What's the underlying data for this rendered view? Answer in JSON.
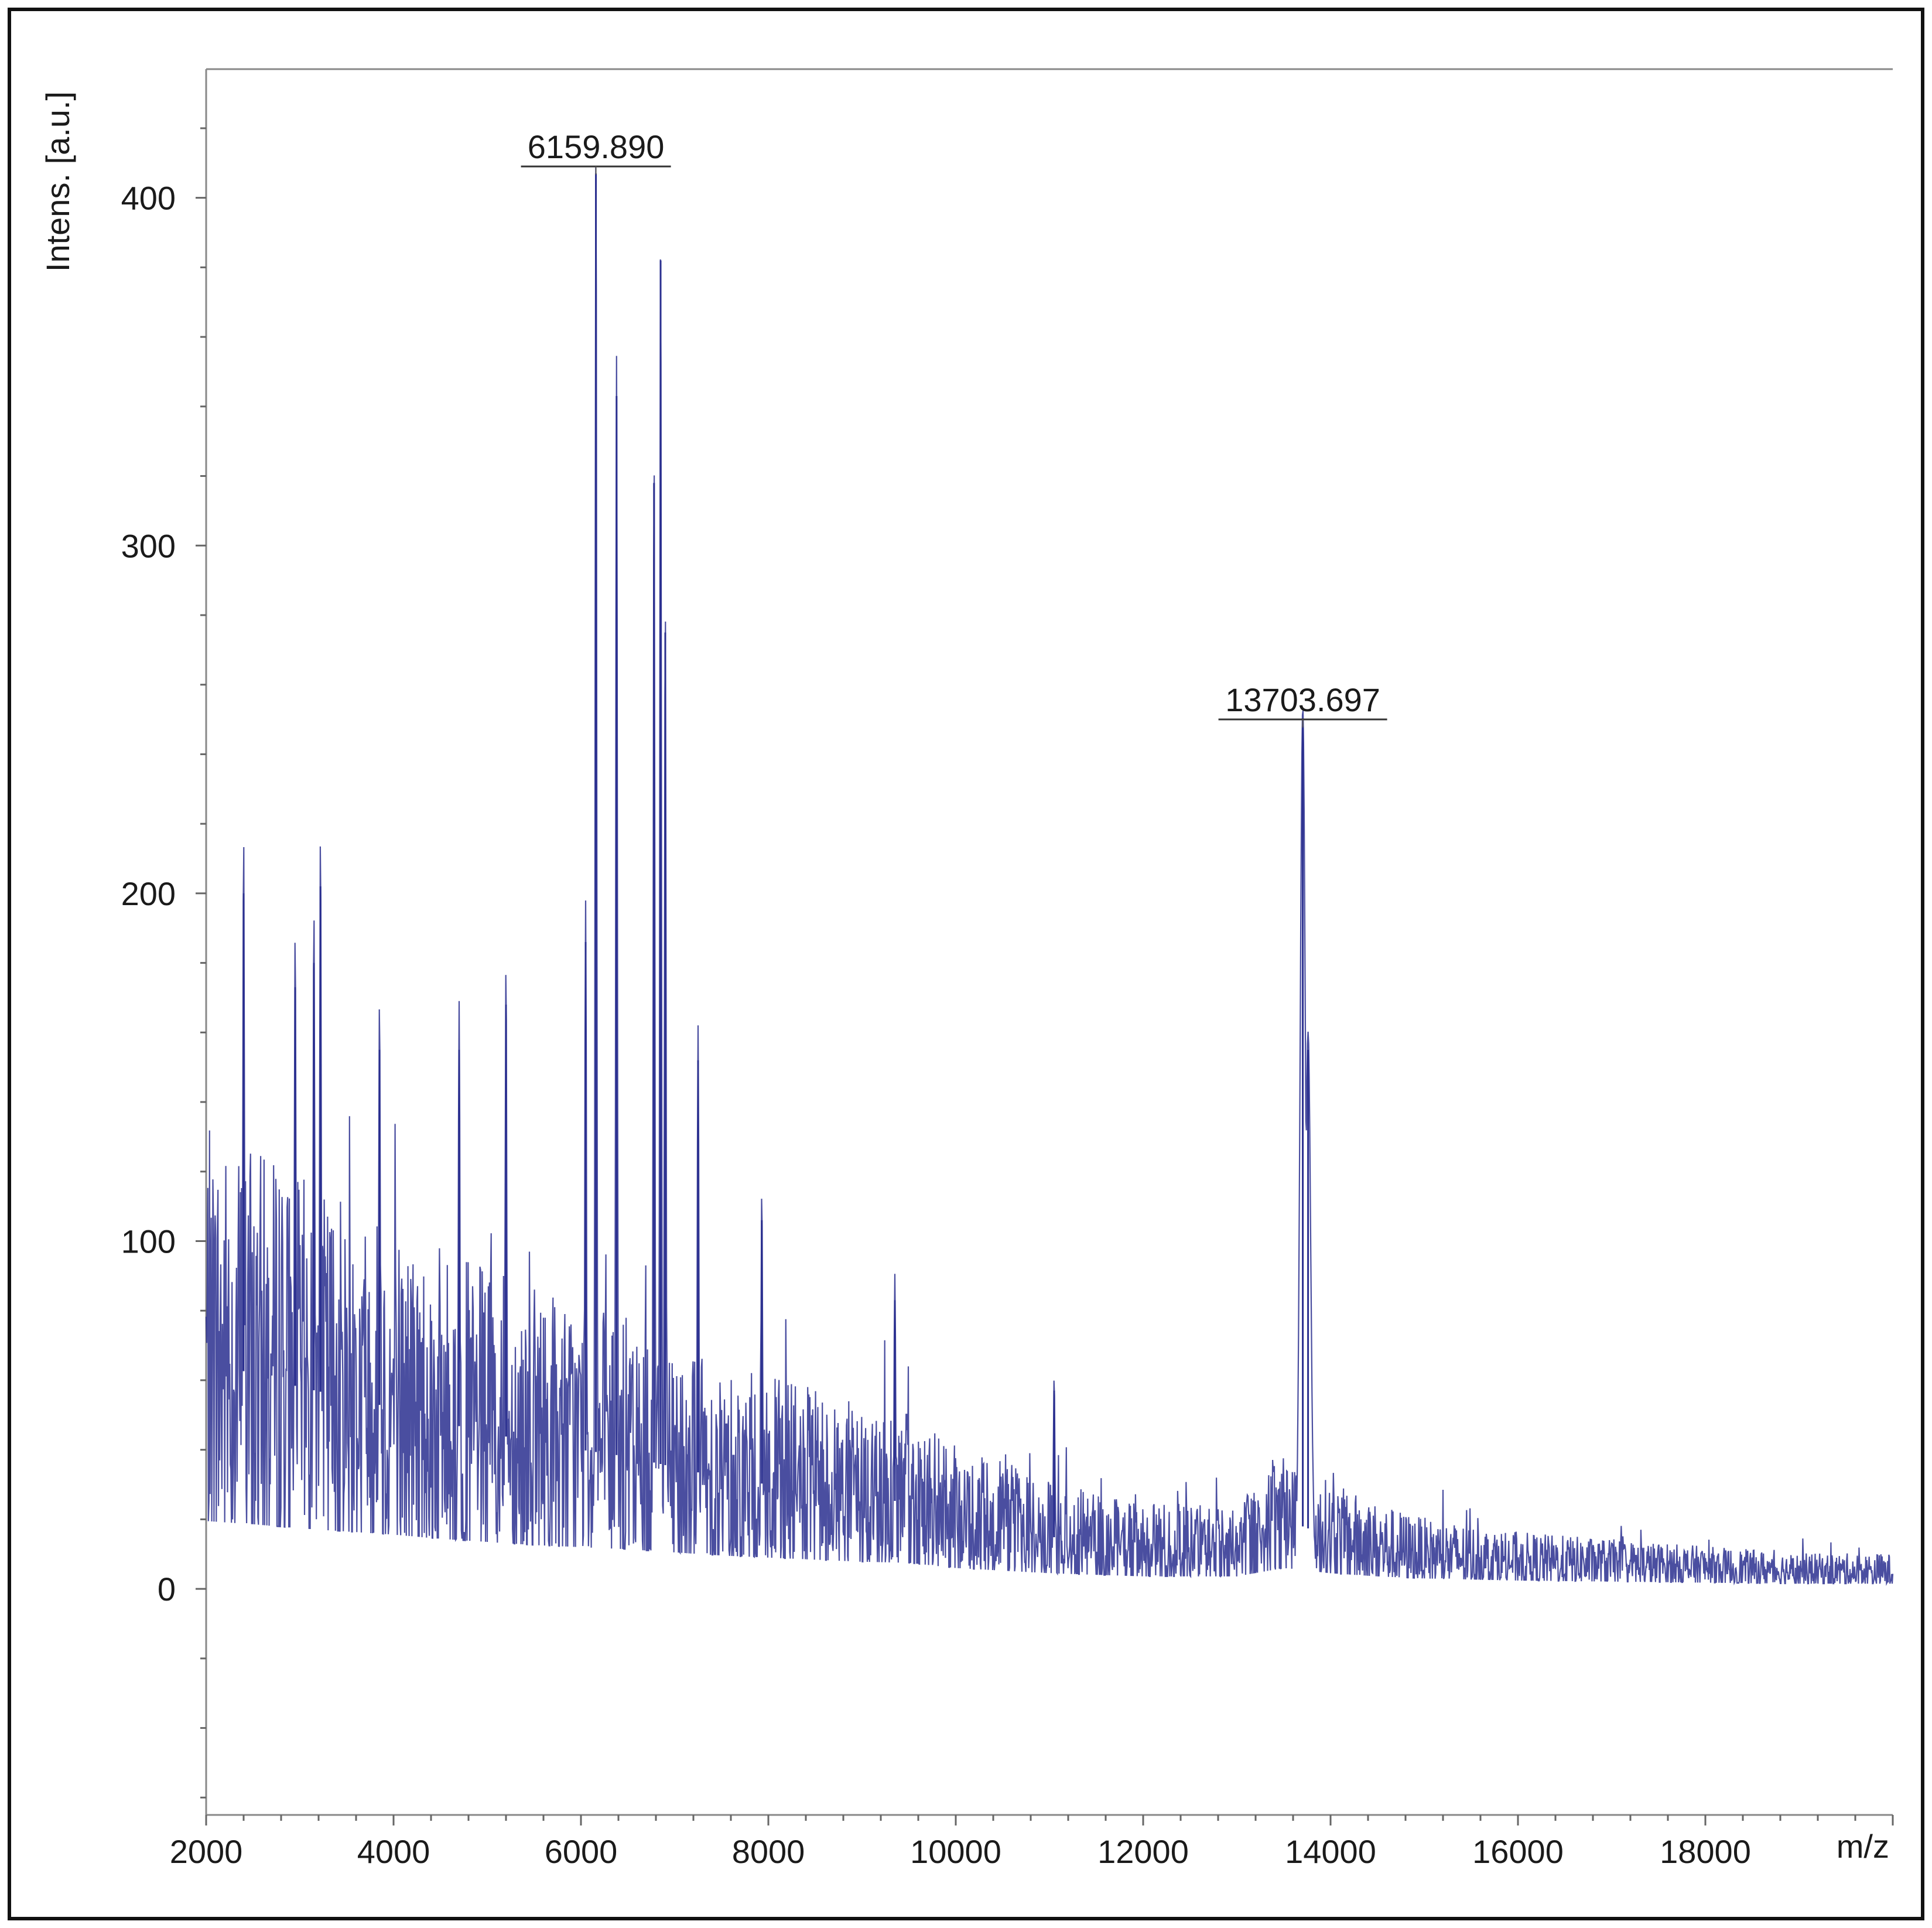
{
  "chart_data": {
    "type": "line",
    "title": "",
    "xlabel": "m/z",
    "ylabel": "Intens. [a.u.]",
    "xlim": [
      2000,
      20000
    ],
    "ylim": [
      -65,
      437
    ],
    "x_ticks": [
      2000,
      4000,
      6000,
      8000,
      10000,
      12000,
      14000,
      16000,
      18000
    ],
    "x_tick_labels": [
      "2000",
      "4000",
      "6000",
      "8000",
      "10000",
      "12000",
      "14000",
      "16000",
      "18000"
    ],
    "y_ticks": [
      0,
      100,
      200,
      300,
      400
    ],
    "y_tick_labels": [
      "0",
      "100",
      "200",
      "300",
      "400"
    ],
    "grid": false,
    "legend": "none",
    "series": [
      {
        "color": "#2a2f8f",
        "baseline_profile": {
          "x": [
            2000,
            2500,
            3000,
            3500,
            4000,
            4500,
            5000,
            5500,
            6000,
            6500,
            7000,
            7500,
            8000,
            8500,
            9000,
            9500,
            10000,
            11000,
            12000,
            13000,
            13500,
            14000,
            14500,
            15000,
            16000,
            17000,
            18000,
            19000,
            20000
          ],
          "y": [
            65,
            62,
            58,
            55,
            52,
            48,
            45,
            42,
            40,
            38,
            35,
            32,
            30,
            28,
            26,
            25,
            20,
            15,
            12,
            12,
            20,
            15,
            12,
            10,
            8,
            7,
            6,
            5,
            5
          ]
        },
        "peaks": [
          {
            "x": 2400,
            "y": 200
          },
          {
            "x": 3220,
            "y": 202
          },
          {
            "x": 3150,
            "y": 180
          },
          {
            "x": 2950,
            "y": 173
          },
          {
            "x": 3850,
            "y": 155
          },
          {
            "x": 4700,
            "y": 155
          },
          {
            "x": 5200,
            "y": 168
          },
          {
            "x": 6050,
            "y": 186
          },
          {
            "x": 6159.89,
            "y": 407
          },
          {
            "x": 6380,
            "y": 343
          },
          {
            "x": 6780,
            "y": 318
          },
          {
            "x": 6850,
            "y": 382
          },
          {
            "x": 6900,
            "y": 275
          },
          {
            "x": 7250,
            "y": 152
          },
          {
            "x": 7930,
            "y": 106
          },
          {
            "x": 9350,
            "y": 83
          },
          {
            "x": 11050,
            "y": 57
          },
          {
            "x": 13703.697,
            "y": 248
          },
          {
            "x": 13760,
            "y": 155
          }
        ],
        "noise_floor_min": -35
      }
    ],
    "annotations": [
      {
        "x": 6159.89,
        "y": 407,
        "text": "6159.890"
      },
      {
        "x": 13703.697,
        "y": 248,
        "text": "13703.697"
      }
    ]
  }
}
